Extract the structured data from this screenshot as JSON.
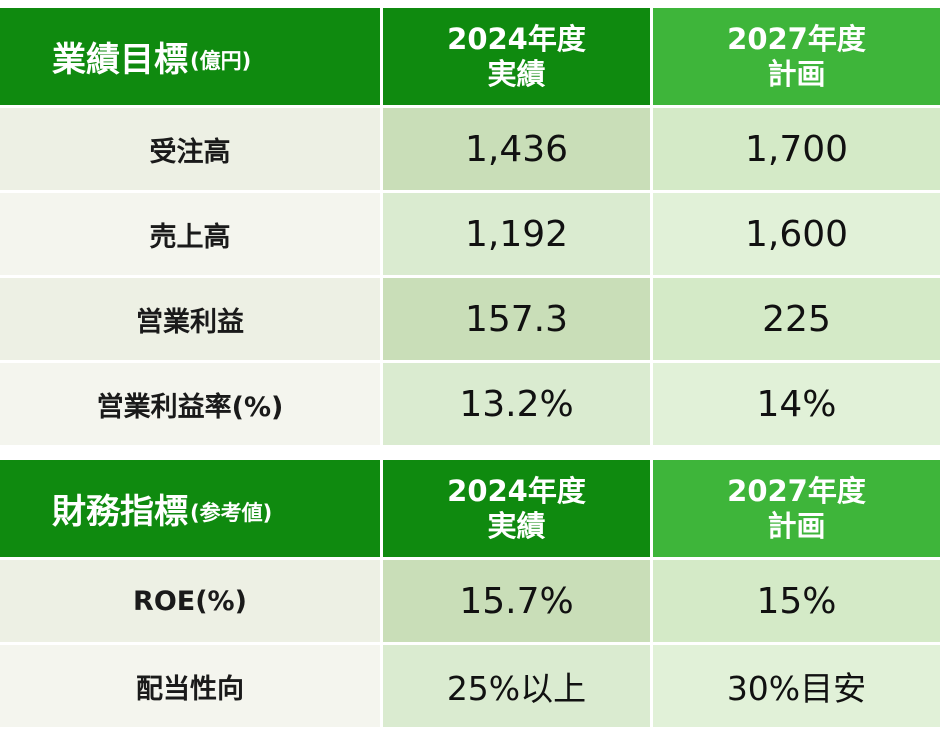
{
  "performance": {
    "title": "業績目標",
    "title_unit": "(億円)",
    "col_actual": [
      "2024年度",
      "実績"
    ],
    "col_plan": [
      "2027年度",
      "計画"
    ],
    "rows": [
      {
        "label": "受注高",
        "actual": "1,436",
        "plan": "1,700"
      },
      {
        "label": "売上高",
        "actual": "1,192",
        "plan": "1,600"
      },
      {
        "label": "営業利益",
        "actual": "157.3",
        "plan": "225"
      },
      {
        "label": "営業利益率(%)",
        "actual": "13.2%",
        "plan": "14%"
      }
    ]
  },
  "financial": {
    "title": "財務指標",
    "title_unit": "(参考値)",
    "col_actual": [
      "2024年度",
      "実績"
    ],
    "col_plan": [
      "2027年度",
      "計画"
    ],
    "rows": [
      {
        "label": "ROE(%)",
        "actual": "15.7%",
        "plan": "15%"
      },
      {
        "label": "配当性向",
        "actual": "25%以上",
        "plan": "30%目安"
      }
    ]
  },
  "colors": {
    "header_dark": "#0f8a0f",
    "header_light": "#3eb53a",
    "label_bg": "#edf0e4",
    "actual_bg": "#c9deb8",
    "plan_bg": "#d4eac7"
  }
}
